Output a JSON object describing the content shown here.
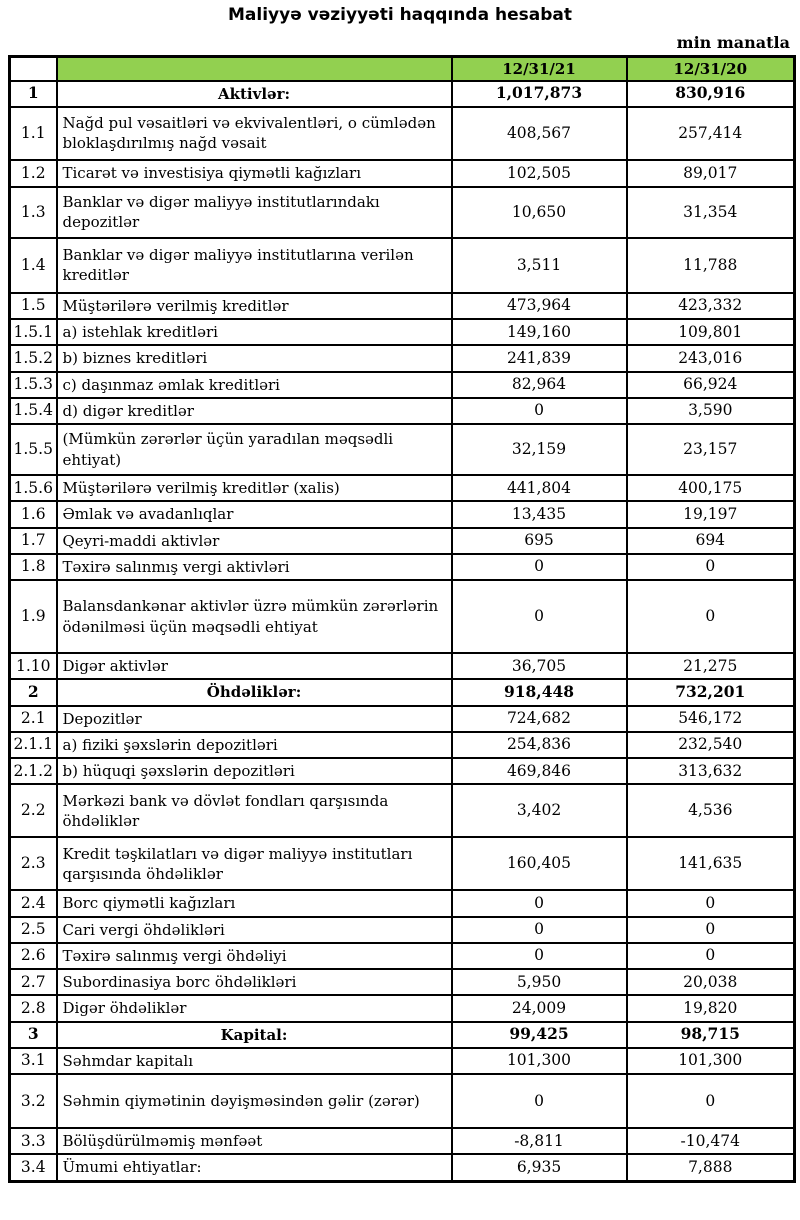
{
  "page": {
    "title": "Maliyyə vəziyyəti haqqında hesabat",
    "unit_note": "min manatla"
  },
  "colors": {
    "header_bg": "#92D050",
    "border": "#000000"
  },
  "table": {
    "header": {
      "corner": "",
      "label": "",
      "col_2021": "12/31/21",
      "col_2020": "12/31/20"
    },
    "rows": [
      {
        "no": "1",
        "label": "Aktivlər:",
        "v2021": "1,017,873",
        "v2020": "830,916",
        "section": true
      },
      {
        "no": "1.1",
        "label": "Nağd pul vəsaitləri və  ekvivalentləri, o cümlədən bloklaşdırılmış nağd vəsait",
        "v2021": "408,567",
        "v2020": "257,414",
        "section": false
      },
      {
        "no": "1.2",
        "label": "Ticarət və investisiya qiymətli kağızları",
        "v2021": "102,505",
        "v2020": "89,017",
        "section": false
      },
      {
        "no": "1.3",
        "label": "Banklar və digər maliyyə institutlarındakı depozitlər",
        "v2021": "10,650",
        "v2020": "31,354",
        "section": false
      },
      {
        "no": "1.4",
        "label": "Banklar və digər maliyyə institutlarına verilən kreditlər",
        "v2021": "3,511",
        "v2020": "11,788",
        "section": false
      },
      {
        "no": "1.5",
        "label": "Müştərilərə verilmiş kreditlər",
        "v2021": "473,964",
        "v2020": "423,332",
        "section": false
      },
      {
        "no": "1.5.1",
        "label": "a) istehlak kreditləri",
        "v2021": "149,160",
        "v2020": "109,801",
        "section": false
      },
      {
        "no": "1.5.2",
        "label": "b) biznes kreditləri",
        "v2021": "241,839",
        "v2020": "243,016",
        "section": false
      },
      {
        "no": "1.5.3",
        "label": "c) daşınmaz əmlak kreditləri",
        "v2021": "82,964",
        "v2020": "66,924",
        "section": false
      },
      {
        "no": "1.5.4",
        "label": "d) digər kreditlər",
        "v2021": "0",
        "v2020": "3,590",
        "section": false
      },
      {
        "no": "1.5.5",
        "label": "(Mümkün zərərlər üçün yaradılan məqsədli ehtiyat)",
        "v2021": "32,159",
        "v2020": "23,157",
        "section": false
      },
      {
        "no": "1.5.6",
        "label": "Müştərilərə verilmiş kreditlər (xalis)",
        "v2021": "441,804",
        "v2020": "400,175",
        "section": false
      },
      {
        "no": "1.6",
        "label": "Əmlak və avadanlıqlar",
        "v2021": "13,435",
        "v2020": "19,197",
        "section": false
      },
      {
        "no": "1.7",
        "label": "Qeyri-maddi aktivlər",
        "v2021": "695",
        "v2020": "694",
        "section": false
      },
      {
        "no": "1.8",
        "label": "Təxirə salınmış vergi aktivləri",
        "v2021": "0",
        "v2020": "0",
        "section": false
      },
      {
        "no": "1.9",
        "label": "Balansdankənar aktivlər üzrə mümkün zərərlərin ödənilməsi üçün məqsədli ehtiyat",
        "v2021": "0",
        "v2020": "0",
        "section": false
      },
      {
        "no": "1.10",
        "label": "Digər aktivlər",
        "v2021": "36,705",
        "v2020": "21,275",
        "section": false
      },
      {
        "no": "2",
        "label": "Öhdəliklər:",
        "v2021": "918,448",
        "v2020": "732,201",
        "section": true
      },
      {
        "no": "2.1",
        "label": "Depozitlər",
        "v2021": "724,682",
        "v2020": "546,172",
        "section": false
      },
      {
        "no": "2.1.1",
        "label": "a) fiziki şəxslərin depozitləri",
        "v2021": "254,836",
        "v2020": "232,540",
        "section": false
      },
      {
        "no": "2.1.2",
        "label": "b) hüquqi şəxslərin depozitləri",
        "v2021": "469,846",
        "v2020": "313,632",
        "section": false
      },
      {
        "no": "2.2",
        "label": "Mərkəzi bank və dövlət fondları qarşısında öhdəliklər",
        "v2021": "3,402",
        "v2020": "4,536",
        "section": false
      },
      {
        "no": "2.3",
        "label": "Kredit təşkilatları və digər maliyyə institutları qarşısında öhdəliklər",
        "v2021": "160,405",
        "v2020": "141,635",
        "section": false
      },
      {
        "no": "2.4",
        "label": "Borc qiymətli kağızları",
        "v2021": "0",
        "v2020": "0",
        "section": false
      },
      {
        "no": "2.5",
        "label": "Cari vergi öhdəlikləri",
        "v2021": "0",
        "v2020": "0",
        "section": false
      },
      {
        "no": "2.6",
        "label": "Təxirə salınmış vergi öhdəliyi",
        "v2021": "0",
        "v2020": "0",
        "section": false
      },
      {
        "no": "2.7",
        "label": "Subordinasiya borc öhdəlikləri",
        "v2021": "5,950",
        "v2020": "20,038",
        "section": false
      },
      {
        "no": "2.8",
        "label": "Digər öhdəliklər",
        "v2021": "24,009",
        "v2020": "19,820",
        "section": false
      },
      {
        "no": "3",
        "label": "Kapital:",
        "v2021": "99,425",
        "v2020": "98,715",
        "section": true
      },
      {
        "no": "3.1",
        "label": "Səhmdar kapitalı",
        "v2021": "101,300",
        "v2020": "101,300",
        "section": false
      },
      {
        "no": "3.2",
        "label": "Səhmin qiymətinin dəyişməsindən gəlir (zərər)",
        "v2021": "0",
        "v2020": "0",
        "section": false
      },
      {
        "no": "3.3",
        "label": "Bölüşdürülməmiş mənfəət",
        "v2021": "-8,811",
        "v2020": "-10,474",
        "section": false
      },
      {
        "no": "3.4",
        "label": "Ümumi ehtiyatlar:",
        "v2021": "6,935",
        "v2020": "7,888",
        "section": false
      }
    ]
  }
}
